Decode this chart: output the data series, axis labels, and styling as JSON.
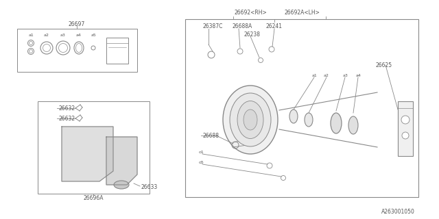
{
  "line_color": "#888888",
  "text_color": "#555555",
  "title_bottom": "A263001050",
  "part_26697": "26697",
  "part_26696A": "26696A",
  "part_26633": "26633",
  "part_26632a": "26632",
  "part_26632b": "26632",
  "part_26692rh": "26692<RH>",
  "part_26692alh": "26692A<LH>",
  "part_26387C": "26387C",
  "part_26688A": "26688A",
  "part_26241": "26241",
  "part_26238": "26238",
  "part_26688": "26688",
  "part_26625": "26625",
  "font_size": 5.5
}
